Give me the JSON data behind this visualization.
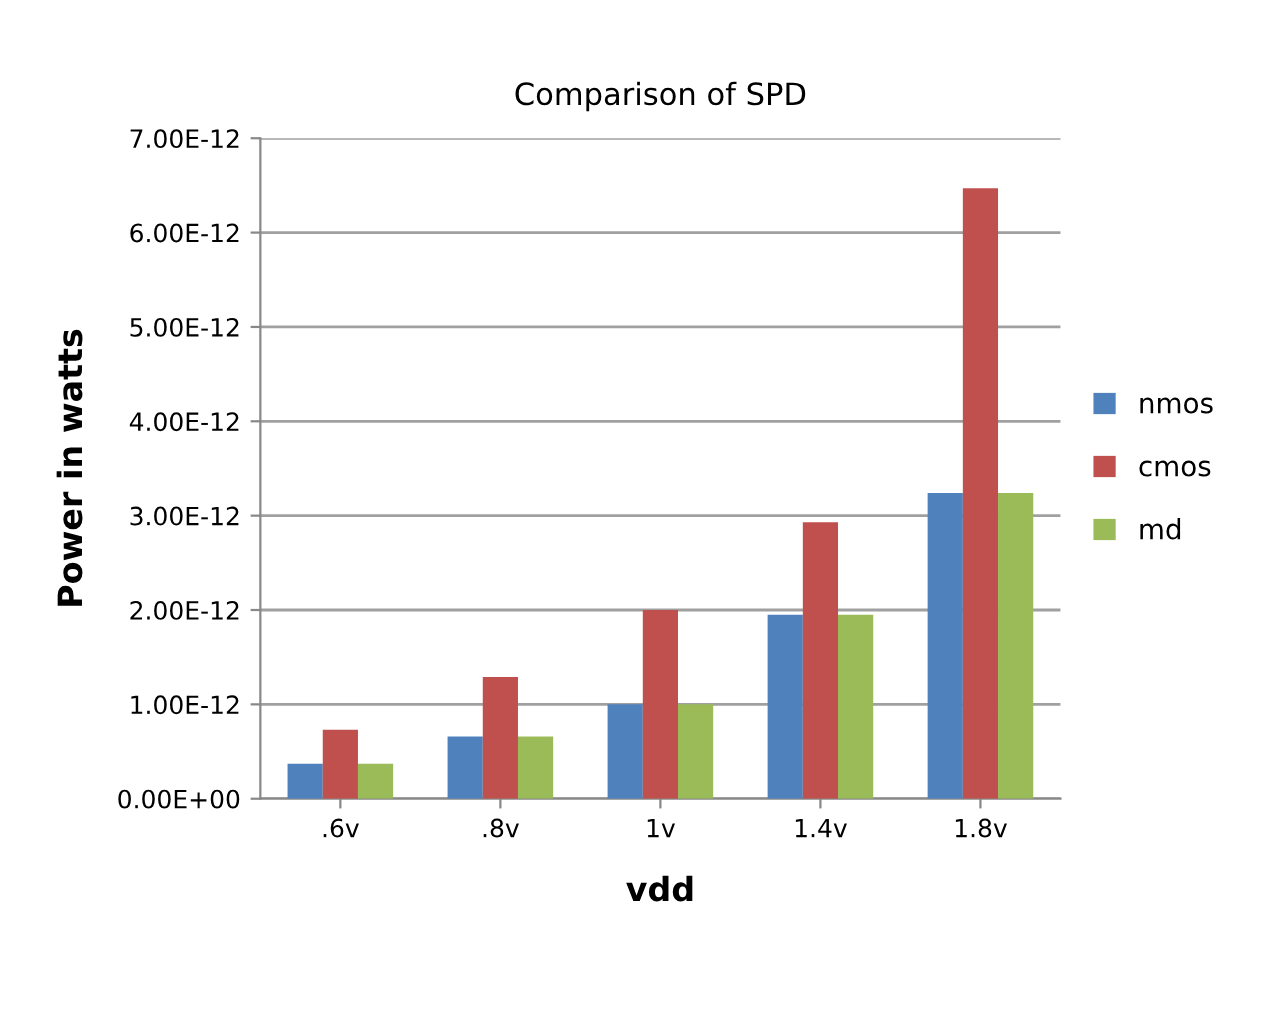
{
  "chart_data": {
    "type": "bar",
    "title": "Comparison of SPD",
    "xlabel": "vdd",
    "ylabel": "Power in watts",
    "categories": [
      ".6v",
      ".8v",
      "1v",
      "1.4v",
      "1.8v"
    ],
    "series": [
      {
        "name": "nmos",
        "color": "#4f81bd",
        "values": [
          3.7e-13,
          6.6e-13,
          1e-12,
          1.95e-12,
          3.24e-12
        ]
      },
      {
        "name": "cmos",
        "color": "#c0504d",
        "values": [
          7.3e-13,
          1.29e-12,
          2e-12,
          2.93e-12,
          6.47e-12
        ]
      },
      {
        "name": "md",
        "color": "#9bbb59",
        "values": [
          3.7e-13,
          6.6e-13,
          1e-12,
          1.95e-12,
          3.24e-12
        ]
      }
    ],
    "ylim": [
      0,
      7e-12
    ],
    "yticks": [
      {
        "value": 0,
        "label": "0.00E+00"
      },
      {
        "value": 1e-12,
        "label": "1.00E-12"
      },
      {
        "value": 2e-12,
        "label": "2.00E-12"
      },
      {
        "value": 3e-12,
        "label": "3.00E-12"
      },
      {
        "value": 4e-12,
        "label": "4.00E-12"
      },
      {
        "value": 5e-12,
        "label": "5.00E-12"
      },
      {
        "value": 6e-12,
        "label": "6.00E-12"
      },
      {
        "value": 7e-12,
        "label": "7.00E-12"
      }
    ],
    "grid": "y",
    "legend": "right"
  }
}
